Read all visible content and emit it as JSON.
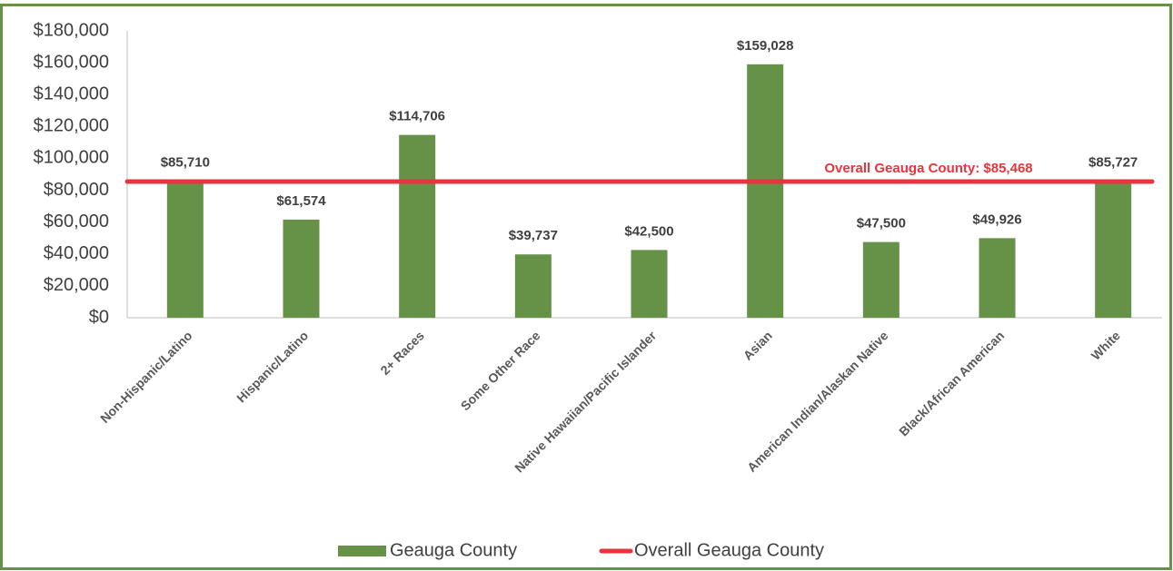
{
  "chart_data": {
    "type": "bar",
    "categories": [
      "Non-Hispanic/Latino",
      "Hispanic/Latino",
      "2+ Races",
      "Some Other Race",
      "Native Hawaiian/Pacific Islander",
      "Asian",
      "American Indian/Alaskan Native",
      "Black/African American",
      "White"
    ],
    "series": [
      {
        "name": "Geauga County",
        "color": "#659246",
        "values": [
          85710,
          61574,
          114706,
          39737,
          42500,
          159028,
          47500,
          49926,
          85727
        ],
        "value_labels": [
          "$85,710",
          "$61,574",
          "$114,706",
          "$39,737",
          "$42,500",
          "$159,028",
          "$47,500",
          "$49,926",
          "$85,727"
        ]
      }
    ],
    "reference_line": {
      "name": "Overall Geauga County",
      "value": 85468,
      "label": "Overall Geauga County: $85,468",
      "color": "#e8343f"
    },
    "ylim": [
      0,
      180000
    ],
    "yticks": [
      {
        "value": 0,
        "label": "$0"
      },
      {
        "value": 20000,
        "label": "$20,000"
      },
      {
        "value": 40000,
        "label": "$40,000"
      },
      {
        "value": 60000,
        "label": "$60,000"
      },
      {
        "value": 80000,
        "label": "$80,000"
      },
      {
        "value": 100000,
        "label": "$100,000"
      },
      {
        "value": 120000,
        "label": "$120,000"
      },
      {
        "value": 140000,
        "label": "$140,000"
      },
      {
        "value": 160000,
        "label": "$160,000"
      },
      {
        "value": 180000,
        "label": "$180,000"
      }
    ],
    "grid": false,
    "legend": "bottom"
  }
}
